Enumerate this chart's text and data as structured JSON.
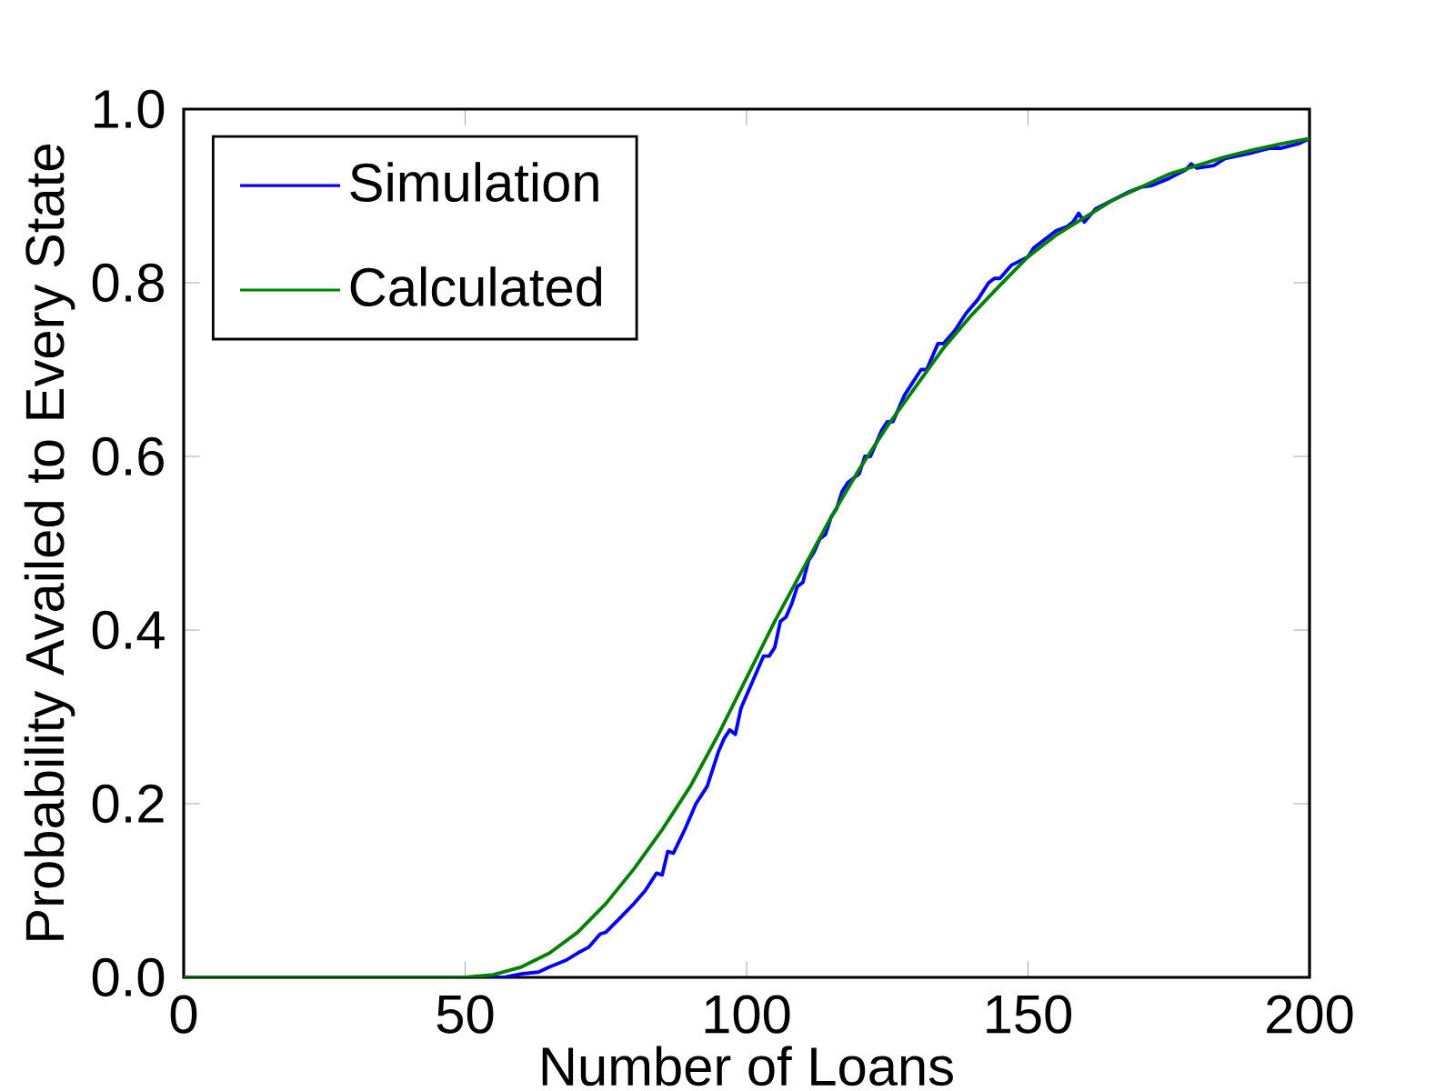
{
  "chart_data": {
    "type": "line",
    "xlabel": "Number of Loans",
    "ylabel": "Probability Availed to Every State",
    "xlim": [
      0,
      200
    ],
    "ylim": [
      0,
      1.0
    ],
    "xticks": [
      0,
      50,
      100,
      150,
      200
    ],
    "yticks": [
      {
        "value": 0,
        "label": "0.0"
      },
      {
        "value": 0.2,
        "label": "0.2"
      },
      {
        "value": 0.4,
        "label": "0.4"
      },
      {
        "value": 0.6,
        "label": "0.6"
      },
      {
        "value": 0.8,
        "label": "0.8"
      },
      {
        "value": 1.0,
        "label": "1.0"
      }
    ],
    "legend": "top left",
    "grid": false,
    "marker": "none",
    "line_style": "solid",
    "series": [
      {
        "name": "Simulation",
        "color": "#0000ff",
        "x": [
          0,
          57,
          60,
          63,
          65,
          68,
          70,
          72,
          74,
          75,
          77,
          80,
          82,
          84,
          85,
          86,
          87,
          89,
          91,
          93,
          95,
          96,
          97,
          98,
          99,
          101,
          103,
          104,
          105,
          106,
          107,
          108,
          109,
          110,
          111,
          112,
          113,
          114,
          115,
          116,
          117,
          118,
          120,
          121,
          122,
          124,
          125,
          126,
          128,
          130,
          131,
          132,
          134,
          135,
          137,
          139,
          141,
          143,
          144,
          145,
          147,
          150,
          151,
          153,
          155,
          157,
          158,
          159,
          160,
          162,
          165,
          168,
          170,
          172,
          175,
          178,
          179,
          180,
          183,
          185,
          190,
          193,
          195,
          198,
          200
        ],
        "values": [
          0,
          0,
          0.004,
          0.006,
          0.012,
          0.02,
          0.028,
          0.035,
          0.05,
          0.052,
          0.065,
          0.085,
          0.1,
          0.12,
          0.118,
          0.145,
          0.143,
          0.17,
          0.2,
          0.22,
          0.26,
          0.275,
          0.285,
          0.28,
          0.31,
          0.34,
          0.37,
          0.37,
          0.38,
          0.41,
          0.415,
          0.43,
          0.45,
          0.455,
          0.48,
          0.49,
          0.505,
          0.51,
          0.53,
          0.54,
          0.56,
          0.57,
          0.58,
          0.6,
          0.6,
          0.63,
          0.64,
          0.64,
          0.67,
          0.69,
          0.7,
          0.7,
          0.73,
          0.73,
          0.745,
          0.765,
          0.78,
          0.8,
          0.805,
          0.805,
          0.82,
          0.83,
          0.84,
          0.85,
          0.86,
          0.865,
          0.87,
          0.88,
          0.87,
          0.885,
          0.895,
          0.905,
          0.91,
          0.912,
          0.92,
          0.93,
          0.937,
          0.932,
          0.935,
          0.943,
          0.95,
          0.955,
          0.955,
          0.96,
          0.966
        ]
      },
      {
        "name": "Calculated",
        "color": "#008000",
        "x": [
          0,
          50,
          55,
          60,
          65,
          70,
          75,
          80,
          85,
          90,
          95,
          100,
          105,
          110,
          115,
          120,
          125,
          130,
          135,
          140,
          145,
          150,
          155,
          160,
          165,
          170,
          175,
          180,
          185,
          190,
          195,
          200
        ],
        "values": [
          0,
          0,
          0.003,
          0.012,
          0.028,
          0.052,
          0.085,
          0.125,
          0.17,
          0.22,
          0.28,
          0.345,
          0.41,
          0.47,
          0.53,
          0.585,
          0.635,
          0.68,
          0.725,
          0.763,
          0.797,
          0.83,
          0.855,
          0.875,
          0.895,
          0.91,
          0.925,
          0.935,
          0.945,
          0.953,
          0.96,
          0.966
        ]
      }
    ]
  }
}
